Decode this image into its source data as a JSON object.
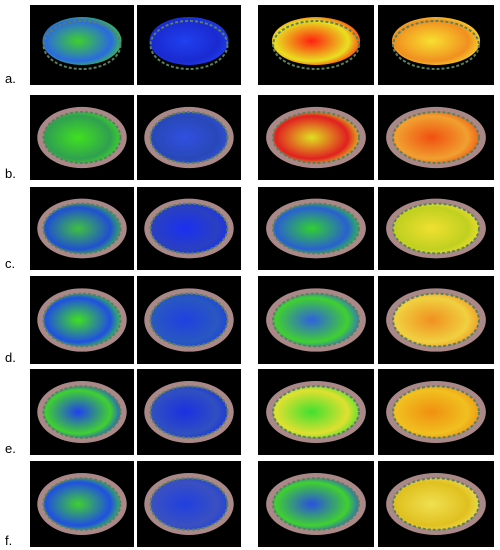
{
  "rows": [
    {
      "label": "a."
    },
    {
      "label": "b."
    },
    {
      "label": "c."
    },
    {
      "label": "d."
    },
    {
      "label": "e."
    },
    {
      "label": "f."
    }
  ]
}
